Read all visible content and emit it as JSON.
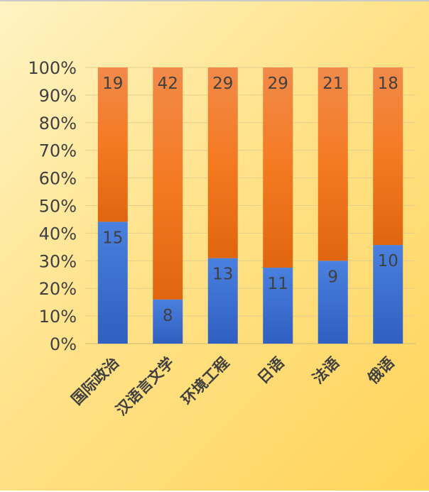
{
  "chart_data": {
    "type": "bar",
    "stacked": "percent",
    "categories": [
      "国际政治",
      "汉语言文学",
      "环境工程",
      "日语",
      "法语",
      "俄语"
    ],
    "series": [
      {
        "values": [
          15,
          8,
          13,
          11,
          9,
          10
        ],
        "color": "#3c6fcf"
      },
      {
        "values": [
          19,
          42,
          29,
          29,
          21,
          18
        ],
        "color": "#f07a22"
      }
    ],
    "y_tick_labels": [
      "0%",
      "10%",
      "20%",
      "30%",
      "40%",
      "50%",
      "60%",
      "70%",
      "80%",
      "90%",
      "100%"
    ],
    "ylim": [
      0,
      100
    ],
    "grid": true,
    "legend": "none",
    "background": "#ffe28a"
  }
}
